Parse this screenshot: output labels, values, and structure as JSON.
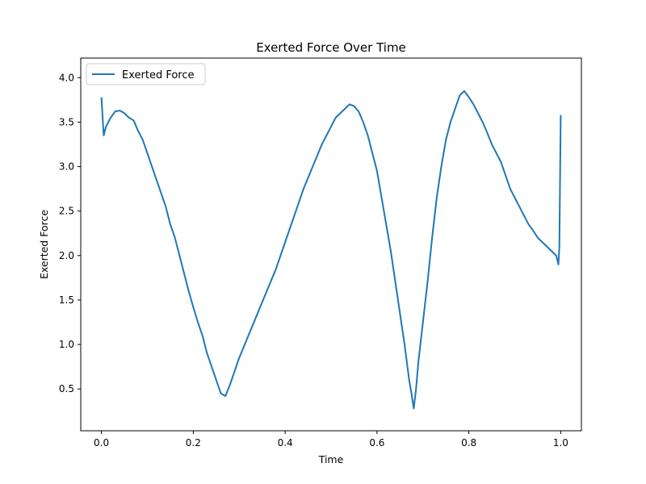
{
  "chart_data": {
    "type": "line",
    "title": "Exerted Force Over Time",
    "xlabel": "Time",
    "ylabel": "Exerted Force",
    "xlim": [
      -0.045,
      1.045
    ],
    "ylim": [
      0.03,
      4.22
    ],
    "x_ticks": [
      0.0,
      0.2,
      0.4,
      0.6,
      0.8,
      1.0
    ],
    "x_tick_labels": [
      "0.0",
      "0.2",
      "0.4",
      "0.6",
      "0.8",
      "1.0"
    ],
    "y_ticks": [
      0.5,
      1.0,
      1.5,
      2.0,
      2.5,
      3.0,
      3.5,
      4.0
    ],
    "y_tick_labels": [
      "0.5",
      "1.0",
      "1.5",
      "2.0",
      "2.5",
      "3.0",
      "3.5",
      "4.0"
    ],
    "grid": false,
    "legend_position": "upper-left",
    "series": [
      {
        "name": "Exerted Force",
        "color": "#1f77b4",
        "x": [
          0.0,
          0.005,
          0.01,
          0.02,
          0.03,
          0.04,
          0.05,
          0.06,
          0.07,
          0.08,
          0.09,
          0.1,
          0.11,
          0.12,
          0.13,
          0.14,
          0.15,
          0.16,
          0.17,
          0.18,
          0.19,
          0.2,
          0.21,
          0.22,
          0.23,
          0.24,
          0.25,
          0.26,
          0.27,
          0.28,
          0.29,
          0.3,
          0.32,
          0.34,
          0.36,
          0.38,
          0.4,
          0.42,
          0.44,
          0.46,
          0.48,
          0.5,
          0.51,
          0.52,
          0.53,
          0.54,
          0.55,
          0.56,
          0.57,
          0.58,
          0.59,
          0.6,
          0.61,
          0.62,
          0.63,
          0.64,
          0.65,
          0.66,
          0.67,
          0.675,
          0.68,
          0.685,
          0.69,
          0.7,
          0.71,
          0.72,
          0.73,
          0.74,
          0.75,
          0.76,
          0.77,
          0.78,
          0.79,
          0.8,
          0.81,
          0.82,
          0.83,
          0.84,
          0.85,
          0.86,
          0.87,
          0.88,
          0.89,
          0.9,
          0.91,
          0.92,
          0.93,
          0.94,
          0.95,
          0.96,
          0.97,
          0.98,
          0.99,
          0.995,
          0.997,
          1.0
        ],
        "values": [
          3.78,
          3.35,
          3.45,
          3.55,
          3.62,
          3.63,
          3.6,
          3.55,
          3.52,
          3.4,
          3.3,
          3.15,
          3.0,
          2.85,
          2.7,
          2.55,
          2.35,
          2.2,
          2.0,
          1.8,
          1.6,
          1.42,
          1.25,
          1.1,
          0.9,
          0.75,
          0.6,
          0.45,
          0.42,
          0.55,
          0.7,
          0.85,
          1.1,
          1.35,
          1.6,
          1.85,
          2.15,
          2.45,
          2.75,
          3.0,
          3.25,
          3.45,
          3.55,
          3.6,
          3.65,
          3.7,
          3.68,
          3.62,
          3.5,
          3.35,
          3.15,
          2.95,
          2.65,
          2.35,
          2.05,
          1.7,
          1.35,
          1.0,
          0.6,
          0.45,
          0.28,
          0.5,
          0.8,
          1.25,
          1.7,
          2.2,
          2.65,
          3.0,
          3.3,
          3.5,
          3.65,
          3.8,
          3.85,
          3.78,
          3.7,
          3.6,
          3.5,
          3.38,
          3.25,
          3.15,
          3.05,
          2.9,
          2.75,
          2.65,
          2.55,
          2.45,
          2.35,
          2.28,
          2.2,
          2.15,
          2.1,
          2.05,
          2.0,
          1.9,
          2.1,
          3.58
        ]
      }
    ]
  }
}
